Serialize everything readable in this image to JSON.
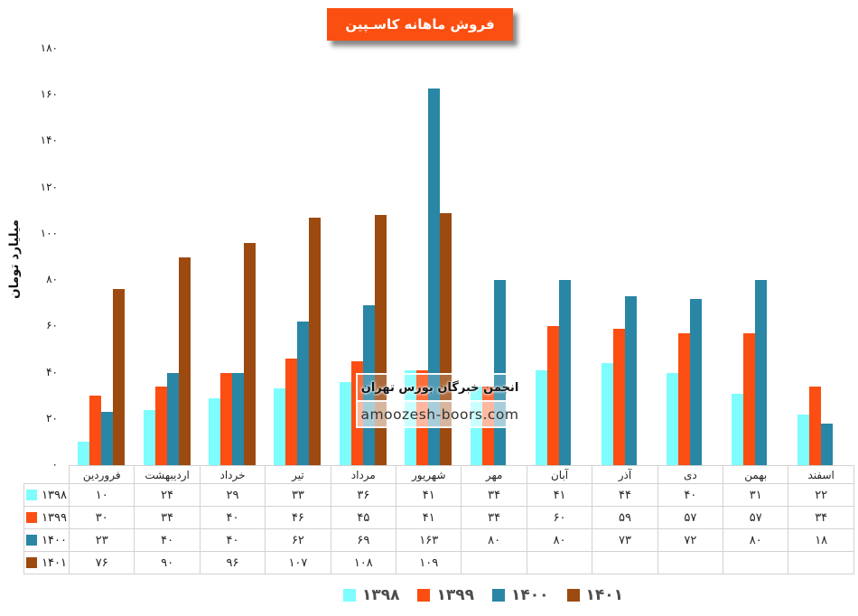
{
  "title": "فروش ماهانه کاسـپین",
  "colors": {
    "banner": "#FB4F11",
    "series_1398": "#7DFDFE",
    "series_1399": "#FC4E12",
    "series_1400": "#2986A5",
    "series_1401": "#9C4A10",
    "table_border": "#d2d2d2"
  },
  "watermark": {
    "line1": "انجمن خبرگان بورس تهران",
    "line2": "amoozesh-boors.com"
  },
  "chart_data": {
    "type": "bar",
    "title": "فروش ماهانه کاسـپین",
    "xlabel": "",
    "ylabel": "میلیارد تومان",
    "ylim": [
      0,
      180
    ],
    "ytick_step": 20,
    "grid": false,
    "legend_position": "bottom",
    "digits": "persian",
    "categories": [
      "فروردین",
      "اردیبهشت",
      "خرداد",
      "تیر",
      "مرداد",
      "شهریور",
      "مهر",
      "آبان",
      "آذر",
      "دی",
      "بهمن",
      "اسفند"
    ],
    "series": [
      {
        "name": "۱۳۹۸",
        "year": 1398,
        "color": "#7DFDFE",
        "values": [
          10,
          24,
          29,
          33,
          36,
          41,
          34,
          41,
          44,
          40,
          31,
          22
        ]
      },
      {
        "name": "۱۳۹۹",
        "year": 1399,
        "color": "#FC4E12",
        "values": [
          30,
          34,
          40,
          46,
          45,
          41,
          34,
          60,
          59,
          57,
          57,
          34
        ]
      },
      {
        "name": "۱۴۰۰",
        "year": 1400,
        "color": "#2986A5",
        "values": [
          23,
          40,
          40,
          62,
          69,
          163,
          80,
          80,
          73,
          72,
          80,
          18
        ]
      },
      {
        "name": "۱۴۰۱",
        "year": 1401,
        "color": "#9C4A10",
        "values": [
          76,
          90,
          96,
          107,
          108,
          109,
          null,
          null,
          null,
          null,
          null,
          null
        ]
      }
    ]
  }
}
